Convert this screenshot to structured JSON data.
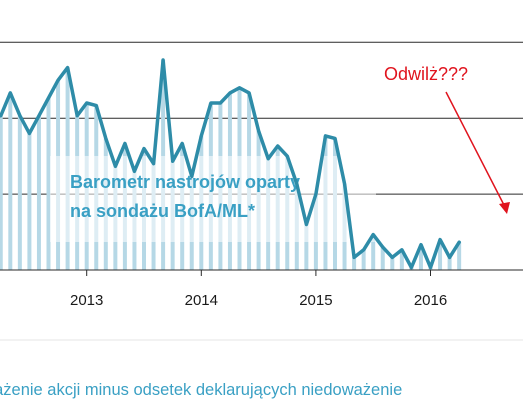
{
  "chart_data": {
    "type": "line",
    "title": "",
    "xlabel": "",
    "ylabel": "",
    "x_ticks": [
      "2013",
      "2014",
      "2015",
      "2016"
    ],
    "grid": "horizontal",
    "overlay_label": [
      "Barometr nastrojów oparty",
      "na sondażu BofA/ML*"
    ],
    "annotation": "Odwilż???",
    "footnote": "eważenie akcji minus odsetek deklarujących niedoważenie",
    "series": [
      {
        "dates": [
          "2012-02",
          "2012-03",
          "2012-04",
          "2012-05",
          "2012-06",
          "2012-07",
          "2012-08",
          "2012-09",
          "2012-10",
          "2012-11",
          "2012-12",
          "2013-01",
          "2013-02",
          "2013-03",
          "2013-04",
          "2013-05",
          "2013-06",
          "2013-07",
          "2013-08",
          "2013-09",
          "2013-10",
          "2013-11",
          "2013-12",
          "2014-01",
          "2014-02",
          "2014-03",
          "2014-04",
          "2014-05",
          "2014-06",
          "2014-07",
          "2014-08",
          "2014-09",
          "2014-10",
          "2014-11",
          "2014-12",
          "2015-01",
          "2015-02",
          "2015-03",
          "2015-04",
          "2015-05",
          "2015-06",
          "2015-07",
          "2015-08",
          "2015-09",
          "2015-10",
          "2015-11",
          "2015-12",
          "2016-01",
          "2016-02",
          "2016-03",
          "2016-04",
          "2016-05",
          "2016-06",
          "2016-07",
          "2016-08",
          "2016-09",
          "2016-10"
        ],
        "values": [
          -4,
          -2,
          17,
          19,
          28,
          42,
          42,
          61,
          61,
          70,
          61,
          54,
          61,
          68,
          75,
          80,
          61,
          66,
          65,
          52,
          41,
          50,
          39,
          48,
          42,
          83,
          43,
          50,
          37,
          53,
          66,
          66,
          70,
          72,
          70,
          55,
          44,
          49,
          45,
          34,
          18,
          30,
          53,
          52,
          34,
          5,
          8,
          14,
          9,
          5,
          8,
          1,
          10,
          1,
          12,
          5,
          11
        ]
      }
    ],
    "colors": {
      "line": "#2e8ca8",
      "bars": "#b6d8e6",
      "grid": "#2a2a2a",
      "overlay_text": "#3aa0c4",
      "annotation": "#e0141e"
    }
  }
}
